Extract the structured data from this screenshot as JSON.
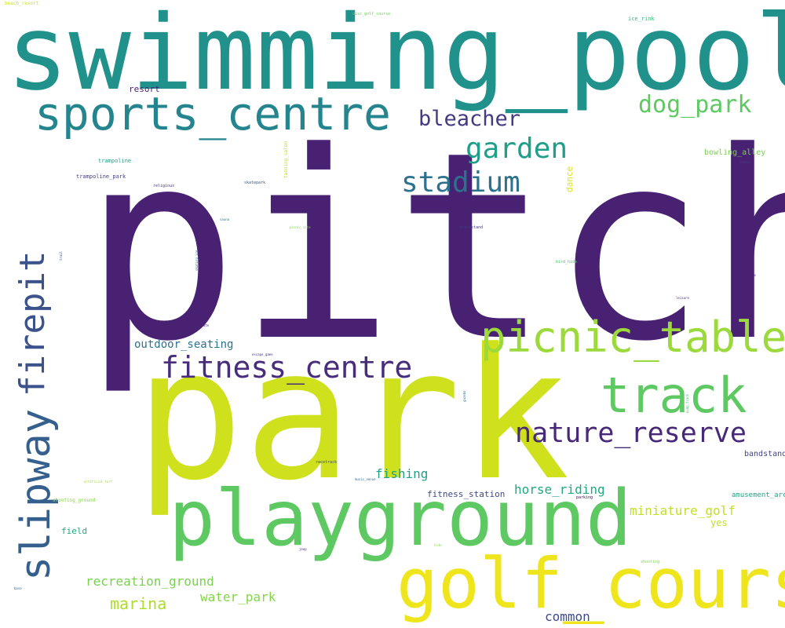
{
  "cloud": {
    "words": [
      {
        "text": "pitch",
        "color": "#482172"
      },
      {
        "text": "swimming_pool",
        "color": "#21918c"
      },
      {
        "text": "park",
        "color": "#cfe11c"
      },
      {
        "text": "playground",
        "color": "#5ec962"
      },
      {
        "text": "golf_course",
        "color": "#efe51c"
      },
      {
        "text": "sports_centre",
        "color": "#25858e"
      },
      {
        "text": "picnic_table",
        "color": "#9bd93c"
      },
      {
        "text": "track",
        "color": "#5ec962"
      },
      {
        "text": "firepit",
        "color": "#3b528b"
      },
      {
        "text": "slipway",
        "color": "#35608d"
      },
      {
        "text": "fitness_centre",
        "color": "#472d7b"
      },
      {
        "text": "nature_reserve",
        "color": "#482878"
      },
      {
        "text": "stadium",
        "color": "#2c728e"
      },
      {
        "text": "garden",
        "color": "#1f9e89"
      },
      {
        "text": "dog_park",
        "color": "#5ec962"
      },
      {
        "text": "bleacher",
        "color": "#443a83"
      },
      {
        "text": "outdoor_seating",
        "color": "#2c728e"
      },
      {
        "text": "miniature_golf",
        "color": "#c2df23"
      },
      {
        "text": "horse_riding",
        "color": "#22a785"
      },
      {
        "text": "recreation_ground",
        "color": "#7ad151"
      },
      {
        "text": "marina",
        "color": "#addc30"
      },
      {
        "text": "water_park",
        "color": "#86d549"
      },
      {
        "text": "fishing",
        "color": "#1fa187"
      },
      {
        "text": "common",
        "color": "#3e4a89"
      },
      {
        "text": "fitness_station",
        "color": "#3e4989"
      },
      {
        "text": "field",
        "color": "#22a884"
      },
      {
        "text": "yes",
        "color": "#c2df23"
      },
      {
        "text": "bandstand",
        "color": "#414487"
      },
      {
        "text": "amusement_arcade",
        "color": "#1fa187"
      },
      {
        "text": "resort",
        "color": "#481f70"
      },
      {
        "text": "bowling_alley",
        "color": "#7ad151"
      },
      {
        "text": "dance",
        "color": "#dde318"
      },
      {
        "text": "ice_rink",
        "color": "#35b779"
      },
      {
        "text": "trampoline",
        "color": "#1f9e89"
      },
      {
        "text": "trampoline_park",
        "color": "#433e85"
      },
      {
        "text": "shooting_ground",
        "color": "#86d549"
      },
      {
        "text": "tanning_salon",
        "color": "#bddf26"
      },
      {
        "text": "beach_resort",
        "color": "#c8e020"
      },
      {
        "text": "disc_golf_course",
        "color": "#6ccd5a"
      },
      {
        "text": "religious",
        "color": "#46337e"
      },
      {
        "text": "skatepark",
        "color": "#3b528b"
      },
      {
        "text": "grandstand",
        "color": "#453882"
      },
      {
        "text": "bird_hide",
        "color": "#4ac16d"
      },
      {
        "text": "sauna",
        "color": "#2a788e"
      },
      {
        "text": "picnic_site",
        "color": "#7ad151"
      },
      {
        "text": "trail",
        "color": "#3e4989"
      },
      {
        "text": "skating_ice",
        "color": "#2c728e"
      },
      {
        "text": "skate",
        "color": "#482475"
      },
      {
        "text": "escape_game",
        "color": "#443983"
      },
      {
        "text": "racetrack",
        "color": "#404688"
      },
      {
        "text": "music_venue",
        "color": "#31688e"
      },
      {
        "text": "parking",
        "color": "#440154"
      },
      {
        "text": "artificial_turf",
        "color": "#a0da39"
      },
      {
        "text": "comedy",
        "color": "#433e85"
      },
      {
        "text": "Passive",
        "color": "#482475"
      },
      {
        "text": "leisure",
        "color": "#481b6d"
      },
      {
        "text": "gazebo",
        "color": "#2d708e"
      },
      {
        "text": "pump_track",
        "color": "#4ac16d"
      },
      {
        "text": "jeep",
        "color": "#472c7a"
      },
      {
        "text": "hide",
        "color": "#8bd646"
      },
      {
        "text": "shooting",
        "color": "#7fd34e"
      },
      {
        "text": "base",
        "color": "#355f8d"
      }
    ]
  }
}
